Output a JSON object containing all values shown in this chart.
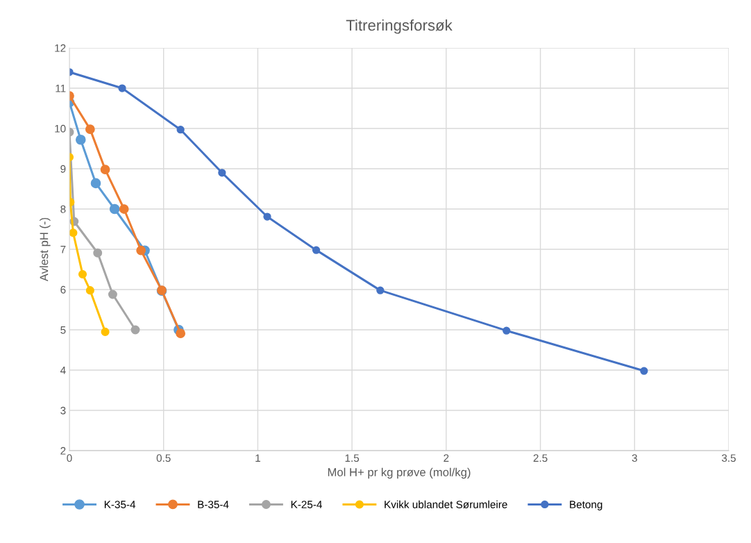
{
  "chart_data": {
    "type": "line",
    "title": "Titreringsforsøk",
    "xlabel": "Mol H+ pr kg prøve (mol/kg)",
    "ylabel": "Avlest pH (-)",
    "xlim": [
      0,
      3.5
    ],
    "xticks": [
      0,
      0.5,
      1,
      1.5,
      2,
      2.5,
      3,
      3.5
    ],
    "ylim": [
      2,
      12
    ],
    "yticks": [
      2,
      3,
      4,
      5,
      6,
      7,
      8,
      9,
      10,
      11,
      12
    ],
    "grid": true,
    "legend": "bottom",
    "marker": "circle",
    "line_style": "solid",
    "series": [
      {
        "name": "K-35-4",
        "color": "#5b9bd5",
        "x": [
          0,
          0.06,
          0.14,
          0.24,
          0.4,
          0.49,
          0.58
        ],
        "values": [
          10.65,
          9.72,
          8.64,
          8.0,
          6.97,
          5.97,
          5.0
        ]
      },
      {
        "name": "B-35-4",
        "color": "#ed7d31",
        "x": [
          0,
          0.11,
          0.19,
          0.29,
          0.38,
          0.49,
          0.59
        ],
        "values": [
          10.81,
          9.98,
          8.98,
          8.0,
          6.97,
          5.98,
          4.91
        ]
      },
      {
        "name": "K-25-4",
        "color": "#a5a5a5",
        "x": [
          0,
          0.025,
          0.15,
          0.23,
          0.35
        ],
        "values": [
          9.91,
          7.69,
          6.91,
          5.88,
          5.0
        ]
      },
      {
        "name": "Kvikk ublandet Sørumleire",
        "color": "#ffc000",
        "x": [
          0,
          0.005,
          0.02,
          0.07,
          0.11,
          0.19
        ],
        "values": [
          9.29,
          8.17,
          7.41,
          6.38,
          5.98,
          4.95
        ]
      },
      {
        "name": "Betong",
        "color": "#4472c4",
        "x": [
          0,
          0.28,
          0.59,
          0.81,
          1.05,
          1.31,
          1.65,
          2.32,
          3.05
        ],
        "values": [
          11.4,
          11.0,
          9.97,
          8.9,
          7.81,
          6.98,
          5.98,
          4.98,
          3.98
        ]
      }
    ]
  }
}
